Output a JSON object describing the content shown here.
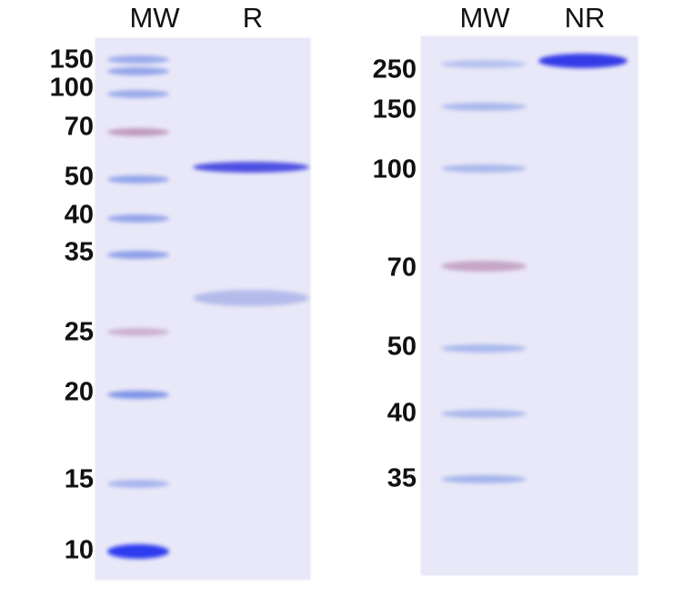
{
  "left_panel": {
    "lanes": [
      "MW",
      "R"
    ],
    "markers": [
      "150",
      "100",
      "70",
      "50",
      "40",
      "35",
      "25",
      "20",
      "15",
      "10"
    ]
  },
  "right_panel": {
    "lanes": [
      "MW",
      "NR"
    ],
    "markers": [
      "250",
      "150",
      "100",
      "70",
      "50",
      "40",
      "35"
    ]
  },
  "colors": {
    "band_blue": "#4a55e0",
    "marker_pink": "#b07aa8",
    "gel_background": "#e9e8f8"
  }
}
